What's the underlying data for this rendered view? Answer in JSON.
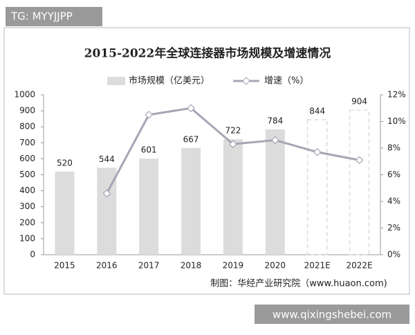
{
  "watermark_top": "TG: MYYJJPP",
  "watermark_bottom": "www.qixingshebei.com",
  "chart_data": {
    "type": "bar-line",
    "title": "2015-2022年全球连接器市场规模及增速情况",
    "source": "制图：华经产业研究院（www.huaon.com)",
    "categories": [
      "2015",
      "2016",
      "2017",
      "2018",
      "2019",
      "2020",
      "2021E",
      "2022E"
    ],
    "series": [
      {
        "name": "市场规模（亿美元）",
        "type": "bar",
        "color": "#dcdcdc",
        "values": [
          520,
          544,
          601,
          667,
          722,
          784,
          844,
          904
        ],
        "dashed": [
          false,
          false,
          false,
          false,
          false,
          false,
          true,
          true
        ]
      },
      {
        "name": "增速（%）",
        "type": "line",
        "axis": "y2",
        "color": "#a5a5b5",
        "values": [
          null,
          4.6,
          10.5,
          11.0,
          8.3,
          8.6,
          7.7,
          7.1
        ]
      }
    ],
    "ylim": [
      0,
      1000
    ],
    "yticks": [
      0,
      100,
      200,
      300,
      400,
      500,
      600,
      700,
      800,
      900,
      1000
    ],
    "y2lim": [
      0,
      12
    ],
    "y2ticks": [
      {
        "value": 0,
        "label": "0%"
      },
      {
        "value": 2,
        "label": "2%"
      },
      {
        "value": 4,
        "label": "4%"
      },
      {
        "value": 6,
        "label": "6%"
      },
      {
        "value": 8,
        "label": "8%"
      },
      {
        "value": 10,
        "label": "10%"
      },
      {
        "value": 12,
        "label": "12%"
      }
    ]
  }
}
